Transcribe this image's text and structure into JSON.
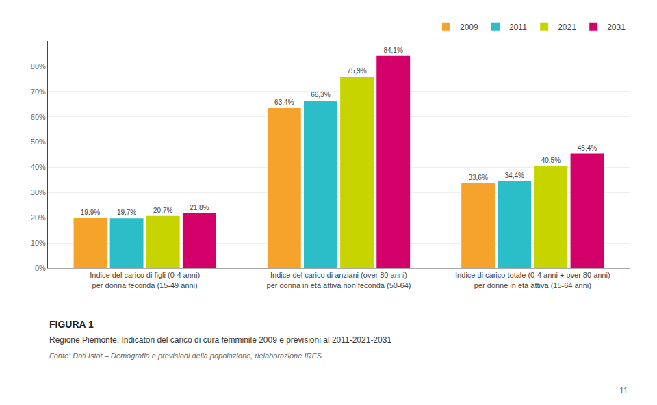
{
  "chart_data": {
    "type": "bar",
    "title": "FIGURA 1",
    "subtitle": "Regione Piemonte, Indicatori del carico di cura femminile 2009 e previsioni al 2011-2021-2031",
    "annotations": [
      "Fonte: Dati Istat – Demografia e previsioni della popolazione, rielaborazione IRES",
      "11"
    ],
    "categories": [
      "Indice del carico di figli (0-4 anni)\nper donna feconda (15-49 anni)",
      "Indice del carico di anziani (over 80 anni)\nper donna in età attiva non feconda (50-64)",
      "Indice di carico totale (0-4 anni + over 80 anni)\nper donne in età attiva (15-64 anni)"
    ],
    "series": [
      {
        "name": "2009",
        "color": "#F5A32A",
        "values": [
          19.9,
          63.4,
          33.6
        ],
        "value_labels": [
          "19,9%",
          "63,4%",
          "33,6%"
        ]
      },
      {
        "name": "2011",
        "color": "#2BBDC8",
        "values": [
          19.7,
          66.3,
          34.4
        ],
        "value_labels": [
          "19,7%",
          "66,3%",
          "34,4%"
        ]
      },
      {
        "name": "2021",
        "color": "#C8D400",
        "values": [
          20.7,
          75.9,
          40.5
        ],
        "value_labels": [
          "20,7%",
          "75,9%",
          "40,5%"
        ]
      },
      {
        "name": "2031",
        "color": "#D4006A",
        "values": [
          21.8,
          84.1,
          45.4
        ],
        "value_labels": [
          "21,8%",
          "84,1%",
          "45,4%"
        ]
      }
    ],
    "ylim": [
      0,
      90
    ],
    "yticks": [
      {
        "value": 0,
        "label": "0%"
      },
      {
        "value": 10,
        "label": "10%"
      },
      {
        "value": 20,
        "label": "20%"
      },
      {
        "value": 30,
        "label": "30%"
      },
      {
        "value": 40,
        "label": "40%"
      },
      {
        "value": 50,
        "label": "50%"
      },
      {
        "value": 60,
        "label": "60%"
      },
      {
        "value": 70,
        "label": "70%"
      },
      {
        "value": 80,
        "label": "80%"
      }
    ],
    "grid": true,
    "legend": "upper right",
    "data_labels": true
  }
}
